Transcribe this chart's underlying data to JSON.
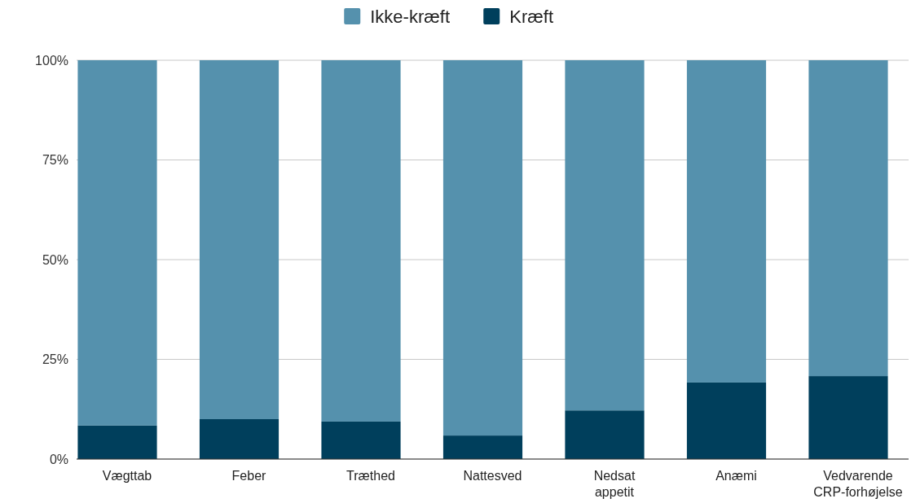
{
  "chart_data": {
    "type": "bar",
    "stacked": true,
    "categories": [
      "Vægttab",
      "Feber",
      "Træthed",
      "Nattesved",
      "Nedsat appetit",
      "Anæmi",
      "Vedvarende CRP-forhøjelse"
    ],
    "series": [
      {
        "name": "Kræft",
        "color": "#003f5c",
        "values": [
          8.4,
          10,
          9.4,
          5.9,
          12.2,
          19.2,
          20.8
        ]
      },
      {
        "name": "Ikke-kræft",
        "color": "#5591ad",
        "values": [
          91.6,
          90,
          90.6,
          94.1,
          87.8,
          80.8,
          79.2
        ]
      }
    ],
    "ylim": [
      0,
      100
    ],
    "yticks": [
      {
        "value": 0,
        "label": "0%"
      },
      {
        "value": 25,
        "label": "25%"
      },
      {
        "value": 50,
        "label": "50%"
      },
      {
        "value": 75,
        "label": "75%"
      },
      {
        "value": 100,
        "label": "100%"
      }
    ],
    "grid": "y",
    "legend": "top"
  }
}
